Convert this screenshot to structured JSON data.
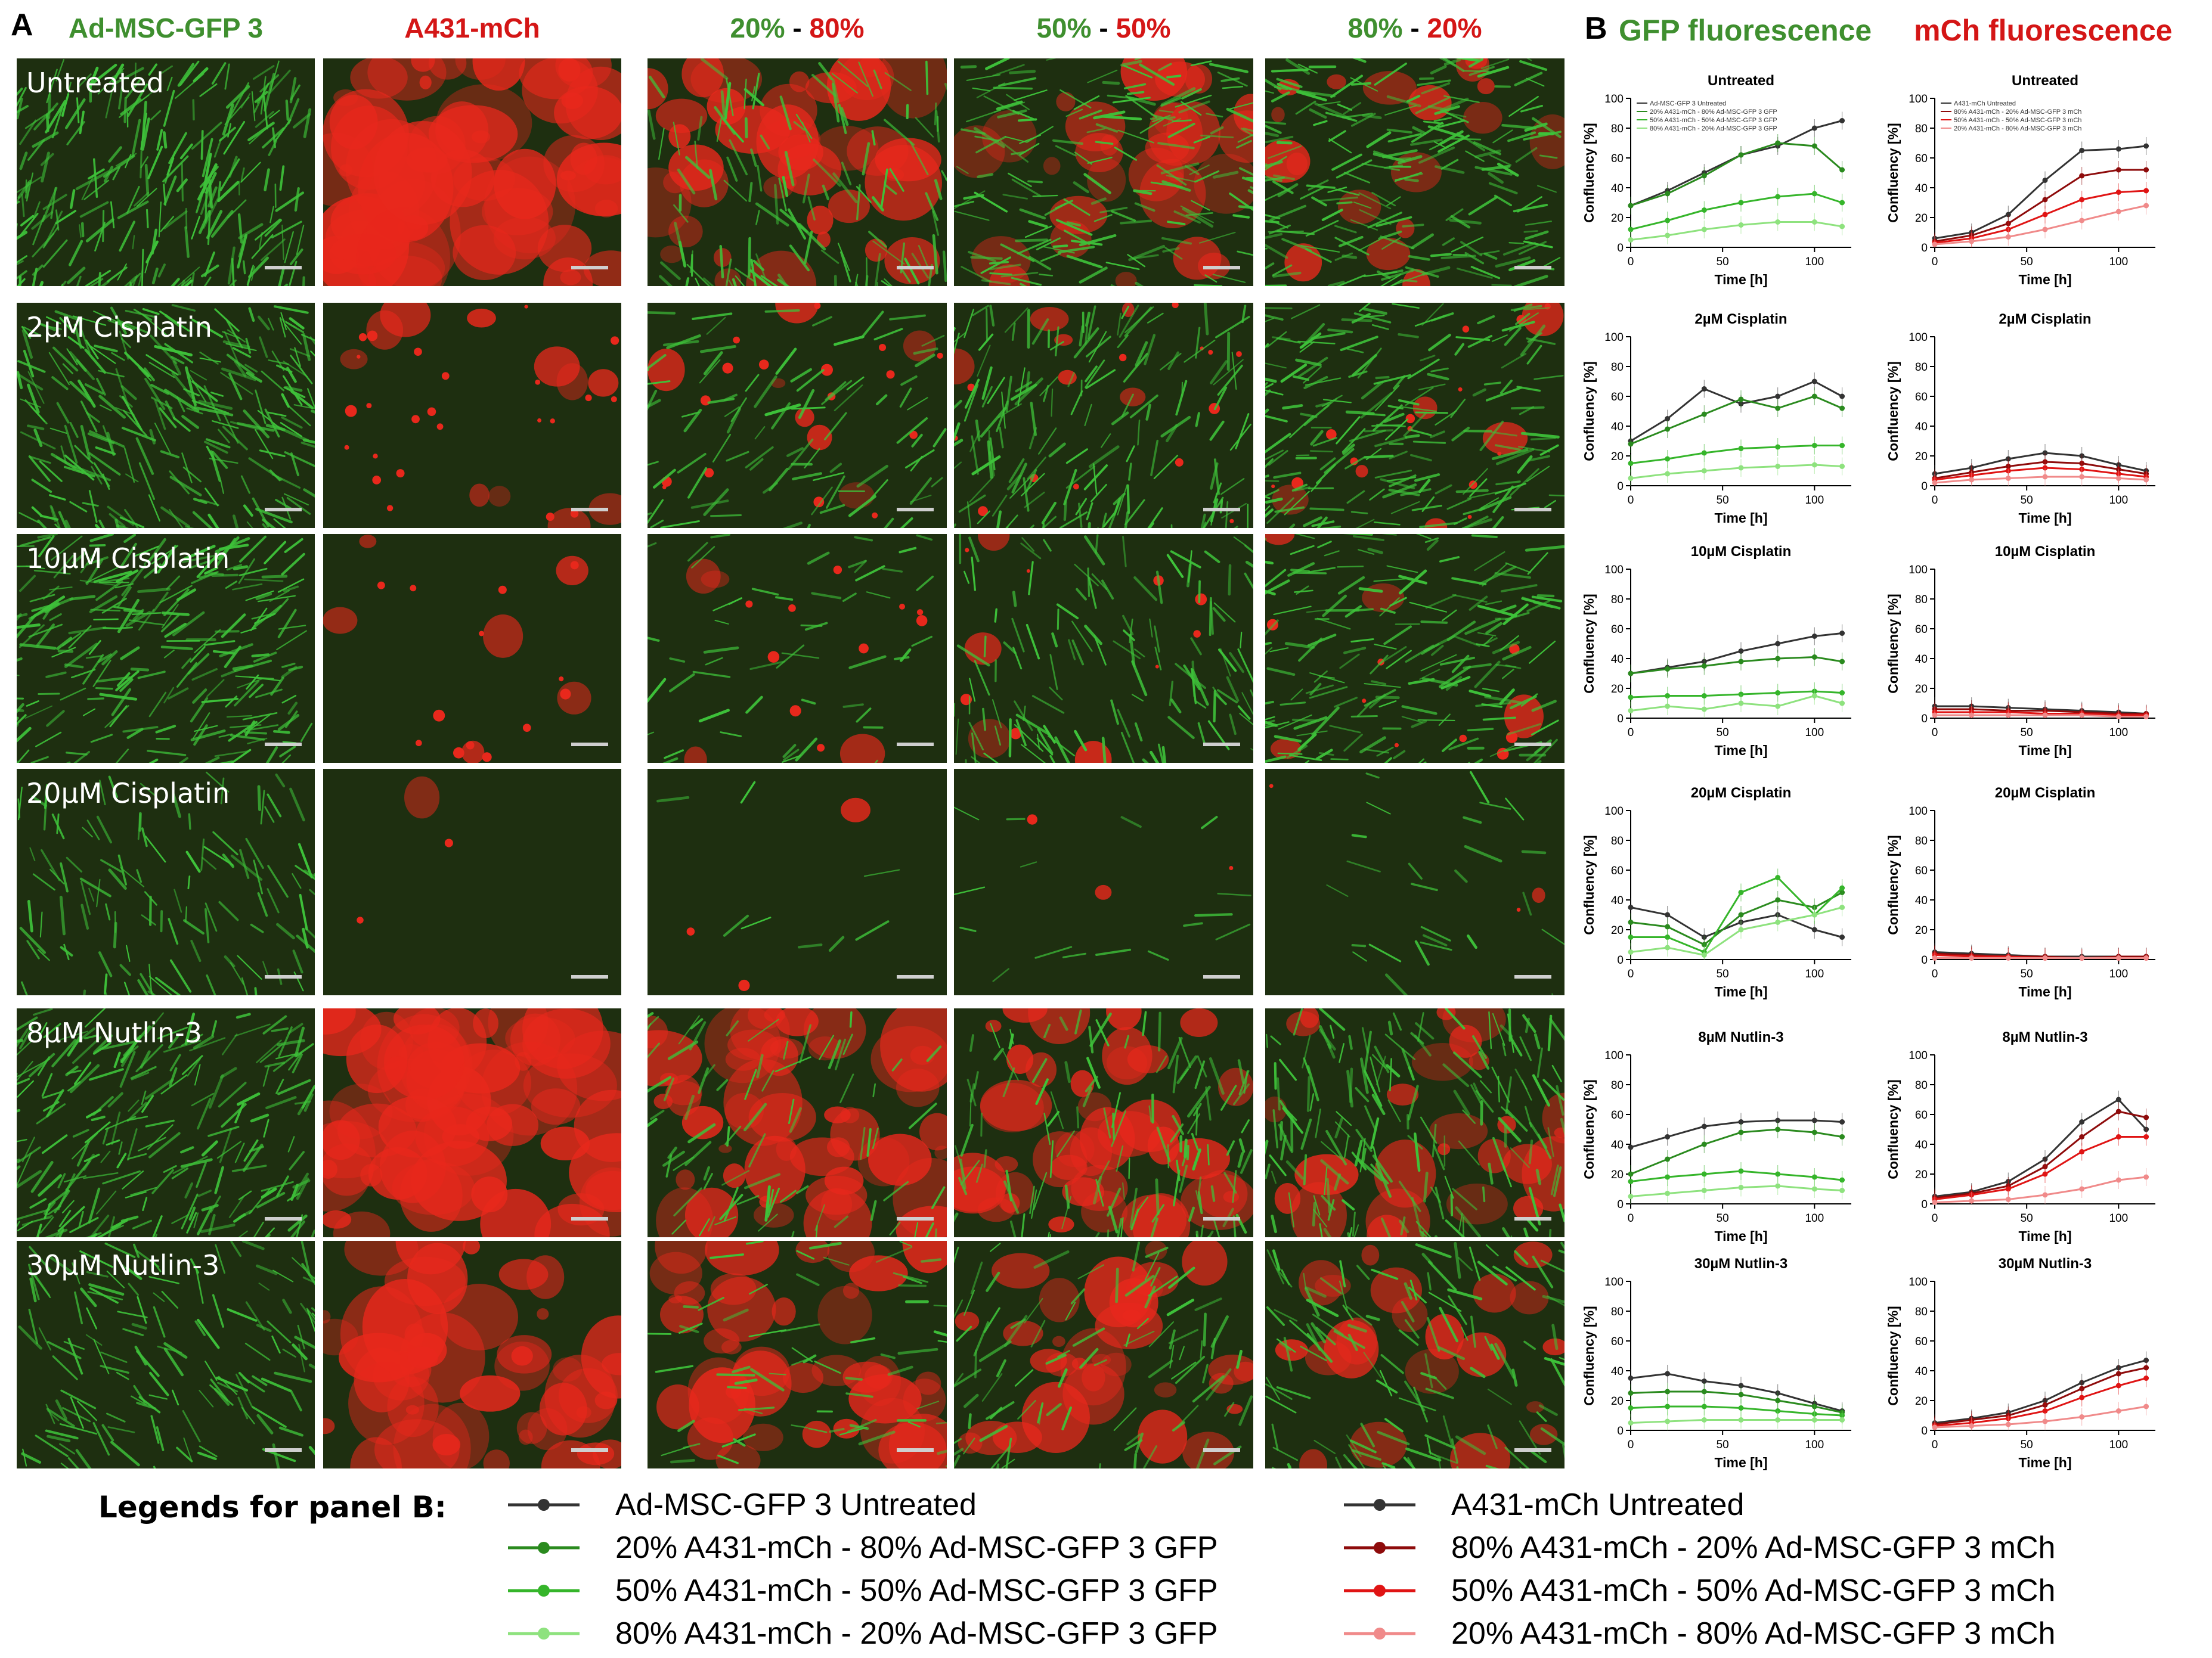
{
  "panel_a": {
    "letter": "A",
    "columns": [
      {
        "id": "c0",
        "parts": [
          {
            "text": "Ad-MSC-GFP 3",
            "color": "#3f8f2f"
          }
        ]
      },
      {
        "id": "c1",
        "parts": [
          {
            "text": "A431-mCh",
            "color": "#d41616"
          }
        ]
      },
      {
        "id": "c2",
        "parts": [
          {
            "text": "20%",
            "color": "#3f8f2f"
          },
          {
            "text": " - ",
            "color": "#000000"
          },
          {
            "text": "80%",
            "color": "#d41616"
          }
        ]
      },
      {
        "id": "c3",
        "parts": [
          {
            "text": "50%",
            "color": "#3f8f2f"
          },
          {
            "text": " - ",
            "color": "#000000"
          },
          {
            "text": "50%",
            "color": "#d41616"
          }
        ]
      },
      {
        "id": "c4",
        "parts": [
          {
            "text": "80%",
            "color": "#3f8f2f"
          },
          {
            "text": " - ",
            "color": "#000000"
          },
          {
            "text": "20%",
            "color": "#d41616"
          }
        ]
      }
    ],
    "rows": [
      {
        "label": "Untreated",
        "red": [
          0.0,
          0.9,
          0.55,
          0.4,
          0.25
        ],
        "green": [
          1.0,
          0.0,
          0.5,
          0.7,
          0.85
        ]
      },
      {
        "label": "2µM Cisplatin",
        "red": [
          0.0,
          0.15,
          0.1,
          0.08,
          0.08
        ],
        "green": [
          1.0,
          0.0,
          0.35,
          0.65,
          0.8
        ]
      },
      {
        "label": "10µM Cisplatin",
        "red": [
          0.0,
          0.08,
          0.06,
          0.05,
          0.05
        ],
        "green": [
          0.95,
          0.0,
          0.2,
          0.5,
          0.75
        ]
      },
      {
        "label": "20µM Cisplatin",
        "red": [
          0.0,
          0.01,
          0.01,
          0.01,
          0.01
        ],
        "green": [
          0.45,
          0.0,
          0.03,
          0.06,
          0.1
        ]
      },
      {
        "label": "8µM Nutlin-3",
        "red": [
          0.0,
          0.85,
          0.7,
          0.55,
          0.35
        ],
        "green": [
          0.9,
          0.0,
          0.3,
          0.5,
          0.7
        ]
      },
      {
        "label": "30µM Nutlin-3",
        "red": [
          0.0,
          0.7,
          0.55,
          0.45,
          0.3
        ],
        "green": [
          0.55,
          0.0,
          0.25,
          0.35,
          0.5
        ]
      }
    ],
    "colors": {
      "background": "#1e2f10",
      "green": "#3ec23a",
      "red": "#e8281c"
    }
  },
  "panel_b": {
    "letter": "B",
    "gfp_header": "GFP fluorescence",
    "mch_header": "mCh fluorescence",
    "axis": {
      "ylabel": "Confluency [%]",
      "xlabel": "Time [h]",
      "xticks": [
        0,
        50,
        100
      ],
      "xlim": [
        0,
        120
      ],
      "ylim": [
        0,
        100
      ],
      "yticks": [
        0,
        20,
        40,
        60,
        80,
        100
      ]
    },
    "gfp_legend": [
      "Ad-MSC-GFP 3 Untreated",
      "20% A431-mCh - 80% Ad-MSC-GFP 3 GFP",
      "50% A431-mCh - 50% Ad-MSC-GFP 3 GFP",
      "80% A431-mCh - 20% Ad-MSC-GFP 3 GFP"
    ],
    "mch_legend": [
      "A431-mCh Untreated",
      "80% A431-mCh - 20% Ad-MSC-GFP 3 mCh",
      "50% A431-mCh - 50% Ad-MSC-GFP 3 mCh",
      "20% A431-mCh - 80% Ad-MSC-GFP 3 mCh"
    ],
    "gfp_colors": [
      "#333333",
      "#2a8a1e",
      "#35b52a",
      "#8ee27e"
    ],
    "mch_colors": [
      "#333333",
      "#8e0b0b",
      "#e01414",
      "#f08a8a"
    ]
  },
  "chart_data": [
    {
      "type": "line",
      "title": "Untreated",
      "channel": "GFP",
      "x": [
        0,
        20,
        40,
        60,
        80,
        100,
        115
      ],
      "series": [
        {
          "name": "Ad-MSC-GFP 3 Untreated",
          "values": [
            28,
            38,
            50,
            62,
            68,
            80,
            85
          ]
        },
        {
          "name": "20% A431-mCh - 80% Ad-MSC-GFP 3 GFP",
          "values": [
            28,
            36,
            48,
            62,
            70,
            68,
            52
          ]
        },
        {
          "name": "50% A431-mCh - 50% Ad-MSC-GFP 3 GFP",
          "values": [
            12,
            18,
            25,
            30,
            34,
            36,
            30
          ]
        },
        {
          "name": "80% A431-mCh - 20% Ad-MSC-GFP 3 GFP",
          "values": [
            5,
            8,
            12,
            15,
            17,
            17,
            14
          ]
        }
      ]
    },
    {
      "type": "line",
      "title": "Untreated",
      "channel": "mCh",
      "x": [
        0,
        20,
        40,
        60,
        80,
        100,
        115
      ],
      "series": [
        {
          "name": "A431-mCh Untreated",
          "values": [
            6,
            10,
            22,
            45,
            65,
            66,
            68
          ]
        },
        {
          "name": "80% A431-mCh - 20% Ad-MSC-GFP 3 mCh",
          "values": [
            4,
            8,
            16,
            32,
            48,
            52,
            52
          ]
        },
        {
          "name": "50% A431-mCh - 50% Ad-MSC-GFP 3 mCh",
          "values": [
            3,
            6,
            12,
            22,
            32,
            37,
            38
          ]
        },
        {
          "name": "20% A431-mCh - 80% Ad-MSC-GFP 3 mCh",
          "values": [
            2,
            4,
            7,
            12,
            18,
            24,
            28
          ]
        }
      ]
    },
    {
      "type": "line",
      "title": "2µM  Cisplatin",
      "channel": "GFP",
      "x": [
        0,
        20,
        40,
        60,
        80,
        100,
        115
      ],
      "series": [
        {
          "name": "Ad-MSC-GFP 3 Untreated",
          "values": [
            30,
            45,
            65,
            55,
            60,
            70,
            60
          ]
        },
        {
          "name": "20% A431-mCh - 80% Ad-MSC-GFP 3 GFP",
          "values": [
            28,
            38,
            48,
            58,
            52,
            60,
            52
          ]
        },
        {
          "name": "50% A431-mCh - 50% Ad-MSC-GFP 3 GFP",
          "values": [
            15,
            18,
            22,
            25,
            26,
            27,
            27
          ]
        },
        {
          "name": "80% A431-mCh - 20% Ad-MSC-GFP 3 GFP",
          "values": [
            5,
            8,
            10,
            12,
            13,
            14,
            13
          ]
        }
      ]
    },
    {
      "type": "line",
      "title": "2µM  Cisplatin",
      "channel": "mCh",
      "x": [
        0,
        20,
        40,
        60,
        80,
        100,
        115
      ],
      "series": [
        {
          "name": "A431-mCh Untreated",
          "values": [
            8,
            12,
            18,
            22,
            20,
            14,
            10
          ]
        },
        {
          "name": "80% A431-mCh - 20% Ad-MSC-GFP 3 mCh",
          "values": [
            5,
            9,
            13,
            16,
            15,
            11,
            8
          ]
        },
        {
          "name": "50% A431-mCh - 50% Ad-MSC-GFP 3 mCh",
          "values": [
            4,
            7,
            10,
            12,
            11,
            8,
            6
          ]
        },
        {
          "name": "20% A431-mCh - 80% Ad-MSC-GFP 3 mCh",
          "values": [
            2,
            4,
            5,
            6,
            6,
            5,
            4
          ]
        }
      ]
    },
    {
      "type": "line",
      "title": "10µM Cisplatin",
      "channel": "GFP",
      "x": [
        0,
        20,
        40,
        60,
        80,
        100,
        115
      ],
      "series": [
        {
          "name": "Ad-MSC-GFP 3 Untreated",
          "values": [
            30,
            34,
            38,
            45,
            50,
            55,
            57
          ]
        },
        {
          "name": "20% A431-mCh - 80% Ad-MSC-GFP 3 GFP",
          "values": [
            30,
            33,
            35,
            38,
            40,
            41,
            38
          ]
        },
        {
          "name": "50% A431-mCh - 50% Ad-MSC-GFP 3 GFP",
          "values": [
            14,
            15,
            15,
            16,
            17,
            18,
            17
          ]
        },
        {
          "name": "80% A431-mCh - 20% Ad-MSC-GFP 3 GFP",
          "values": [
            5,
            8,
            6,
            10,
            8,
            15,
            10
          ]
        }
      ]
    },
    {
      "type": "line",
      "title": "10µM Cisplatin",
      "channel": "mCh",
      "x": [
        0,
        20,
        40,
        60,
        80,
        100,
        115
      ],
      "series": [
        {
          "name": "A431-mCh Untreated",
          "values": [
            8,
            8,
            7,
            6,
            5,
            4,
            3
          ]
        },
        {
          "name": "80% A431-mCh - 20% Ad-MSC-GFP 3 mCh",
          "values": [
            6,
            6,
            5,
            5,
            4,
            3,
            3
          ]
        },
        {
          "name": "50% A431-mCh - 50% Ad-MSC-GFP 3 mCh",
          "values": [
            4,
            4,
            4,
            3,
            3,
            2,
            2
          ]
        },
        {
          "name": "20% A431-mCh - 80% Ad-MSC-GFP 3 mCh",
          "values": [
            2,
            2,
            2,
            2,
            2,
            1,
            1
          ]
        }
      ]
    },
    {
      "type": "line",
      "title": "20µM Cisplatin",
      "channel": "GFP",
      "x": [
        0,
        20,
        40,
        60,
        80,
        100,
        115
      ],
      "series": [
        {
          "name": "Ad-MSC-GFP 3 Untreated",
          "values": [
            35,
            30,
            15,
            25,
            30,
            20,
            15
          ]
        },
        {
          "name": "20% A431-mCh - 80% Ad-MSC-GFP 3 GFP",
          "values": [
            25,
            22,
            10,
            30,
            40,
            35,
            45
          ]
        },
        {
          "name": "50% A431-mCh - 50% Ad-MSC-GFP 3 GFP",
          "values": [
            15,
            15,
            5,
            45,
            55,
            30,
            48
          ]
        },
        {
          "name": "80% A431-mCh - 20% Ad-MSC-GFP 3 GFP",
          "values": [
            5,
            8,
            3,
            20,
            25,
            30,
            35
          ]
        }
      ]
    },
    {
      "type": "line",
      "title": "20µM Cisplatin",
      "channel": "mCh",
      "x": [
        0,
        20,
        40,
        60,
        80,
        100,
        115
      ],
      "series": [
        {
          "name": "A431-mCh Untreated",
          "values": [
            5,
            4,
            3,
            2,
            2,
            2,
            2
          ]
        },
        {
          "name": "80% A431-mCh - 20% Ad-MSC-GFP 3 mCh",
          "values": [
            4,
            3,
            2,
            2,
            1,
            2,
            2
          ]
        },
        {
          "name": "50% A431-mCh - 50% Ad-MSC-GFP 3 mCh",
          "values": [
            3,
            2,
            2,
            1,
            1,
            1,
            1
          ]
        },
        {
          "name": "20% A431-mCh - 80% Ad-MSC-GFP 3 mCh",
          "values": [
            1,
            1,
            1,
            1,
            1,
            1,
            1
          ]
        }
      ]
    },
    {
      "type": "line",
      "title": "8µM Nutlin-3",
      "channel": "GFP",
      "x": [
        0,
        20,
        40,
        60,
        80,
        100,
        115
      ],
      "series": [
        {
          "name": "Ad-MSC-GFP 3 Untreated",
          "values": [
            38,
            45,
            52,
            55,
            56,
            56,
            55
          ]
        },
        {
          "name": "20% A431-mCh - 80% Ad-MSC-GFP 3 GFP",
          "values": [
            20,
            30,
            40,
            48,
            50,
            48,
            45
          ]
        },
        {
          "name": "50% A431-mCh - 50% Ad-MSC-GFP 3 GFP",
          "values": [
            15,
            18,
            20,
            22,
            20,
            18,
            16
          ]
        },
        {
          "name": "80% A431-mCh - 20% Ad-MSC-GFP 3 GFP",
          "values": [
            5,
            7,
            9,
            11,
            12,
            10,
            9
          ]
        }
      ]
    },
    {
      "type": "line",
      "title": "8µM Nutlin-3",
      "channel": "mCh",
      "x": [
        0,
        20,
        40,
        60,
        80,
        100,
        115
      ],
      "series": [
        {
          "name": "A431-mCh Untreated",
          "values": [
            5,
            8,
            15,
            30,
            55,
            70,
            50
          ]
        },
        {
          "name": "80% A431-mCh - 20% Ad-MSC-GFP 3 mCh",
          "values": [
            4,
            7,
            12,
            25,
            45,
            62,
            58
          ]
        },
        {
          "name": "50% A431-mCh - 50% Ad-MSC-GFP 3 mCh",
          "values": [
            3,
            6,
            10,
            20,
            35,
            45,
            45
          ]
        },
        {
          "name": "20% A431-mCh - 80% Ad-MSC-GFP 3 mCh",
          "values": [
            1,
            2,
            3,
            6,
            10,
            16,
            18
          ]
        }
      ]
    },
    {
      "type": "line",
      "title": "30µM Nutlin-3",
      "channel": "GFP",
      "x": [
        0,
        20,
        40,
        60,
        80,
        100,
        115
      ],
      "series": [
        {
          "name": "Ad-MSC-GFP 3 Untreated",
          "values": [
            35,
            38,
            33,
            30,
            25,
            18,
            13
          ]
        },
        {
          "name": "20% A431-mCh - 80% Ad-MSC-GFP 3 GFP",
          "values": [
            25,
            26,
            26,
            24,
            20,
            16,
            12
          ]
        },
        {
          "name": "50% A431-mCh - 50% Ad-MSC-GFP 3 GFP",
          "values": [
            15,
            16,
            16,
            15,
            13,
            11,
            10
          ]
        },
        {
          "name": "80% A431-mCh - 20% Ad-MSC-GFP 3 GFP",
          "values": [
            5,
            6,
            7,
            7,
            7,
            7,
            7
          ]
        }
      ]
    },
    {
      "type": "line",
      "title": "30µM Nutlin-3",
      "channel": "mCh",
      "x": [
        0,
        20,
        40,
        60,
        80,
        100,
        115
      ],
      "series": [
        {
          "name": "A431-mCh Untreated",
          "values": [
            5,
            8,
            12,
            20,
            32,
            42,
            47
          ]
        },
        {
          "name": "80% A431-mCh - 20% Ad-MSC-GFP 3 mCh",
          "values": [
            4,
            7,
            10,
            17,
            28,
            38,
            42
          ]
        },
        {
          "name": "50% A431-mCh - 50% Ad-MSC-GFP 3 mCh",
          "values": [
            3,
            5,
            8,
            13,
            22,
            30,
            35
          ]
        },
        {
          "name": "20% A431-mCh - 80% Ad-MSC-GFP 3 mCh",
          "values": [
            2,
            3,
            4,
            6,
            9,
            13,
            16
          ]
        }
      ]
    }
  ],
  "legend": {
    "title": "Legends for panel B:",
    "left": [
      {
        "label": "Ad-MSC-GFP 3 Untreated",
        "color": "#333333"
      },
      {
        "label": "20% A431-mCh - 80% Ad-MSC-GFP 3 GFP",
        "color": "#2a8a1e"
      },
      {
        "label": "50% A431-mCh - 50% Ad-MSC-GFP 3 GFP",
        "color": "#35b52a"
      },
      {
        "label": "80% A431-mCh - 20% Ad-MSC-GFP 3 GFP",
        "color": "#8ee27e"
      }
    ],
    "right": [
      {
        "label": "A431-mCh Untreated",
        "color": "#333333"
      },
      {
        "label": "80% A431-mCh - 20% Ad-MSC-GFP 3 mCh",
        "color": "#8e0b0b"
      },
      {
        "label": "50% A431-mCh - 50% Ad-MSC-GFP 3 mCh",
        "color": "#e01414"
      },
      {
        "label": "20% A431-mCh - 80% Ad-MSC-GFP 3 mCh",
        "color": "#f08a8a"
      }
    ]
  }
}
